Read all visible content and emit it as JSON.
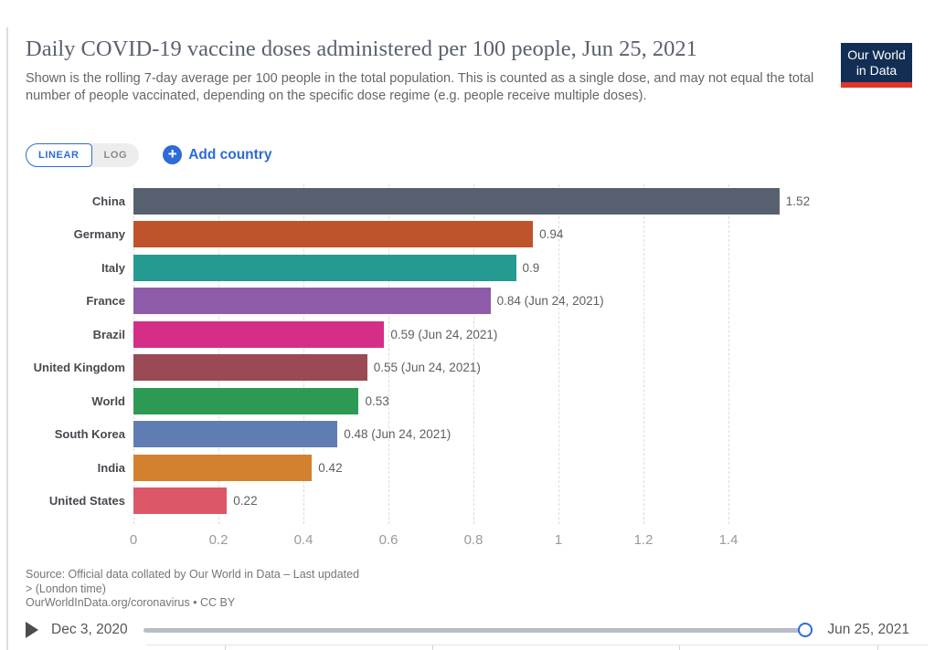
{
  "header": {
    "title": "Daily COVID-19 vaccine doses administered per 100 people, Jun 25, 2021",
    "subtitle": "Shown is the rolling 7-day average per 100 people in the total population. This is counted as a single dose, and may not equal the total number of people vaccinated, depending on the specific dose regime (e.g. people receive multiple doses).",
    "logo_line1": "Our World",
    "logo_line2": "in Data"
  },
  "controls": {
    "linear_label": "LINEAR",
    "log_label": "LOG",
    "plus_icon": "+",
    "add_country_label": "Add country"
  },
  "chart_data": {
    "type": "bar",
    "orientation": "horizontal",
    "categories": [
      "China",
      "Germany",
      "Italy",
      "France",
      "Brazil",
      "United Kingdom",
      "World",
      "South Korea",
      "India",
      "United States"
    ],
    "values": [
      1.52,
      0.94,
      0.9,
      0.84,
      0.59,
      0.55,
      0.53,
      0.48,
      0.42,
      0.22
    ],
    "value_labels": [
      "1.52",
      "0.94",
      "0.9",
      "0.84 (Jun 24, 2021)",
      "0.59 (Jun 24, 2021)",
      "0.55 (Jun 24, 2021)",
      "0.53",
      "0.48 (Jun 24, 2021)",
      "0.42",
      "0.22"
    ],
    "bar_colors": [
      "#57606f",
      "#bf532c",
      "#249a90",
      "#8e5ba8",
      "#d42e87",
      "#9a4a54",
      "#2c9a52",
      "#5f7db3",
      "#d3812f",
      "#dc5767"
    ],
    "x_ticks": [
      0,
      0.2,
      0.4,
      0.6,
      0.8,
      1,
      1.2,
      1.4
    ],
    "x_tick_labels": [
      "0",
      "0.2",
      "0.4",
      "0.6",
      "0.8",
      "1",
      "1.2",
      "1.4"
    ],
    "xlim": [
      0,
      1.55
    ],
    "grid": "dashed-vertical",
    "title": "Daily COVID-19 vaccine doses administered per 100 people, Jun 25, 2021"
  },
  "source": {
    "line1": "Source: Official data collated by Our World in Data – Last updated",
    "line2": "> (London time)",
    "line3": "OurWorldInData.org/coronavirus • CC BY"
  },
  "timeline": {
    "start_date": "Dec 3, 2020",
    "end_date": "Jun 25, 2021"
  },
  "colors": {
    "accent_blue": "#2d6bd8",
    "logo_navy": "#132e54",
    "logo_red": "#e0342c"
  }
}
